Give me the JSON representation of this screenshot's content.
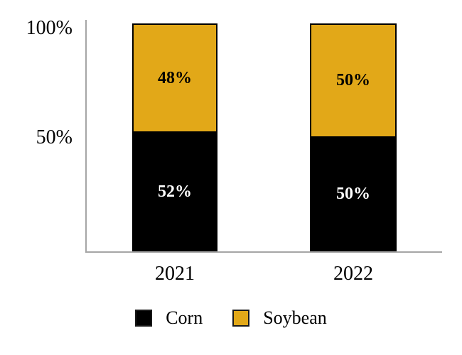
{
  "chart_data": {
    "type": "bar",
    "stacked": true,
    "title": "",
    "xlabel": "",
    "ylabel": "",
    "categories": [
      "2021",
      "2022"
    ],
    "series": [
      {
        "name": "Corn",
        "color": "#000000",
        "label_color": "#ffffff",
        "values": [
          52,
          50
        ],
        "value_labels": [
          "52%",
          "50%"
        ]
      },
      {
        "name": "Soybean",
        "color": "#e2a818",
        "label_color": "#000000",
        "values": [
          48,
          50
        ],
        "value_labels": [
          "48%",
          "50%"
        ]
      }
    ],
    "yticks": [
      {
        "label": "100%",
        "value": 100
      },
      {
        "label": "50%",
        "value": 50
      }
    ],
    "ylim": [
      0,
      100
    ],
    "grid": false,
    "legend_position": "bottom",
    "axis_color": "#a6a6a6",
    "background_color": "#ffffff"
  }
}
